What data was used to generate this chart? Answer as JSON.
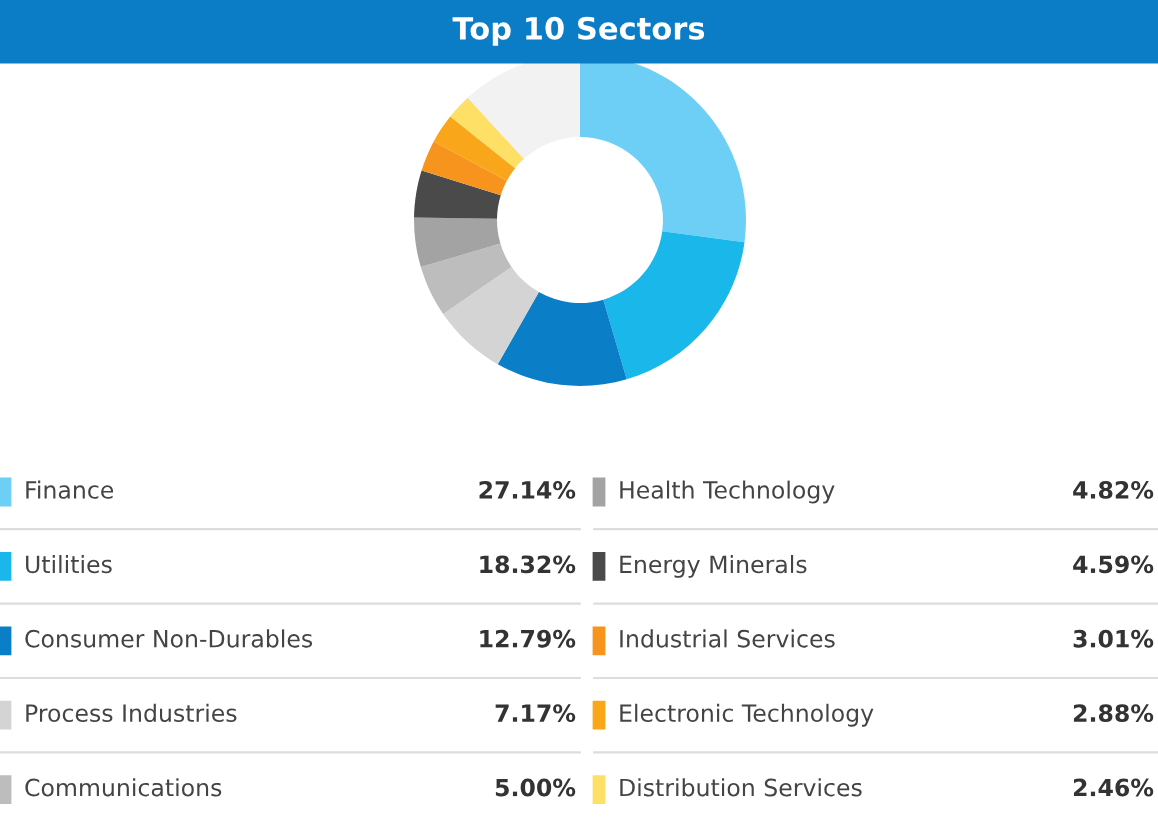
{
  "chart_data": {
    "type": "donut",
    "title": "Top 10 Sectors",
    "categories": [
      "Finance",
      "Utilities",
      "Consumer Non-Durables",
      "Process Industries",
      "Communications",
      "Health Technology",
      "Energy Minerals",
      "Industrial Services",
      "Electronic Technology",
      "Distribution Services",
      null
    ],
    "values": [
      27.14,
      18.32,
      12.79,
      7.17,
      5.0,
      4.82,
      4.59,
      3.01,
      2.88,
      2.46,
      11.82
    ],
    "value_labels": [
      "27.14%",
      "18.32%",
      "12.79%",
      "7.17%",
      "5.00%",
      "4.82%",
      "4.59%",
      "3.01%",
      "2.88%",
      "2.46%",
      null
    ],
    "colors": [
      "#6dcff6",
      "#1ab7ea",
      "#0a7fc8",
      "#d4d4d4",
      "#bdbdbd",
      "#a3a3a3",
      "#4a4a4a",
      "#f7941d",
      "#faa61a",
      "#ffe066",
      "#f2f2f2"
    ],
    "legend": "bottom"
  }
}
